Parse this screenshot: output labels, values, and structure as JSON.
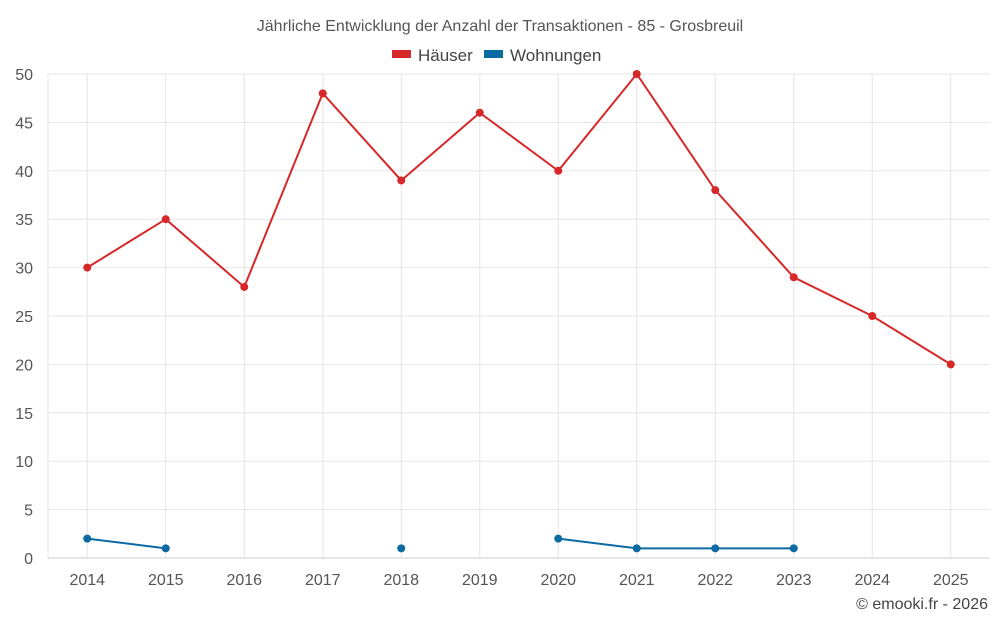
{
  "chart_data": {
    "type": "line",
    "title": "Jährliche Entwicklung der Anzahl der Transaktionen - 85 - Grosbreuil",
    "categories": [
      "2014",
      "2015",
      "2016",
      "2017",
      "2018",
      "2019",
      "2020",
      "2021",
      "2022",
      "2023",
      "2024",
      "2025"
    ],
    "ylim": [
      0,
      50
    ],
    "yticks": [
      0,
      5,
      10,
      15,
      20,
      25,
      30,
      35,
      40,
      45,
      50
    ],
    "grid": true,
    "legend_position": "top-center",
    "series": [
      {
        "name": "Häuser",
        "color": "#d62828",
        "values": [
          30,
          35,
          28,
          48,
          39,
          46,
          40,
          50,
          38,
          29,
          25,
          20
        ]
      },
      {
        "name": "Wohnungen",
        "color": "#0a6aa1",
        "values": [
          2,
          1,
          null,
          null,
          1,
          null,
          2,
          1,
          1,
          1,
          null,
          null
        ]
      }
    ]
  },
  "credit": "© emooki.fr - 2026"
}
